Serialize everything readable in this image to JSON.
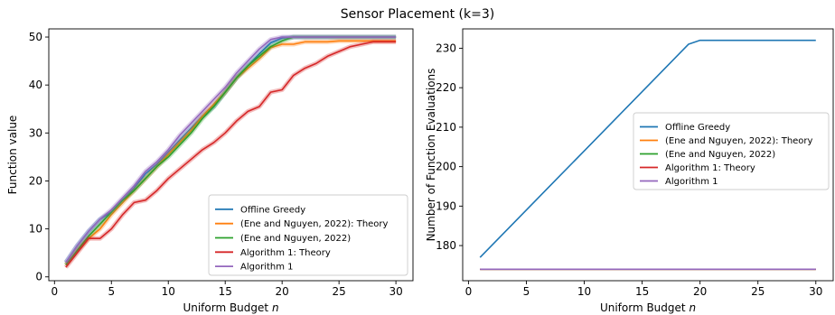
{
  "figure": {
    "suptitle": "Sensor Placement (k=3)"
  },
  "colors": {
    "offline_greedy": "#1f77b4",
    "ene_theory": "#ff7f0e",
    "ene": "#2ca02c",
    "alg1_theory": "#d62728",
    "alg1": "#9467bd"
  },
  "chart_data": [
    {
      "type": "line",
      "title": "",
      "xlabel": "Uniform Budget n",
      "ylabel": "Function value",
      "xlim": [
        -0.5,
        31.5
      ],
      "ylim": [
        -0.8,
        51.7
      ],
      "xticks": [
        0,
        5,
        10,
        15,
        20,
        25,
        30
      ],
      "yticks": [
        0,
        10,
        20,
        30,
        40,
        50
      ],
      "grid": false,
      "legend_position": "lower-right",
      "x": [
        1,
        2,
        3,
        4,
        5,
        6,
        7,
        8,
        9,
        10,
        11,
        12,
        13,
        14,
        15,
        16,
        17,
        18,
        19,
        20,
        21,
        22,
        23,
        24,
        25,
        26,
        27,
        28,
        29,
        30
      ],
      "series": [
        {
          "name": "Offline Greedy",
          "color_key": "offline_greedy",
          "values": [
            3,
            6.5,
            9.5,
            12,
            13.5,
            16,
            18.5,
            21.5,
            23.5,
            26,
            28.5,
            31,
            33.5,
            35.5,
            38.5,
            41.5,
            44,
            46.5,
            48.8,
            49.8,
            50,
            50,
            50,
            50,
            50,
            50,
            50,
            50,
            50,
            50
          ]
        },
        {
          "name": "(Ene and Nguyen, 2022): Theory",
          "color_key": "ene_theory",
          "values": [
            2.5,
            5.5,
            8,
            10,
            13,
            15.5,
            18,
            20.5,
            23,
            25.5,
            28,
            30.5,
            33.5,
            36,
            38.5,
            41.5,
            43.5,
            45.5,
            47.8,
            48.5,
            48.5,
            49,
            49,
            49,
            49.2,
            49.2,
            49.2,
            49.2,
            49.2,
            49.2
          ]
        },
        {
          "name": "(Ene and Nguyen, 2022)",
          "color_key": "ene",
          "values": [
            2.5,
            5.5,
            8.5,
            11,
            13.5,
            16,
            18,
            20.5,
            23,
            25,
            27.5,
            30,
            33,
            35.5,
            38.5,
            41.5,
            44,
            46,
            48,
            49.2,
            50,
            50,
            50,
            50,
            50,
            50,
            50,
            50,
            50,
            50
          ]
        },
        {
          "name": "Algorithm 1: Theory",
          "color_key": "alg1_theory",
          "values": [
            2,
            5,
            8,
            8,
            10,
            13,
            15.5,
            16,
            18,
            20.5,
            22.5,
            24.5,
            26.5,
            28,
            30,
            32.5,
            34.5,
            35.5,
            38.5,
            39,
            42,
            43.5,
            44.5,
            46,
            47,
            48,
            48.5,
            49,
            49,
            49
          ]
        },
        {
          "name": "Algorithm 1",
          "color_key": "alg1",
          "values": [
            3,
            6.5,
            9.5,
            12,
            14,
            16.5,
            19,
            22,
            24,
            26.5,
            29.5,
            32,
            34.5,
            37,
            39.5,
            42.5,
            45,
            47.5,
            49.5,
            50,
            50,
            50,
            50,
            50,
            50,
            50,
            50,
            50,
            50,
            50
          ]
        }
      ]
    },
    {
      "type": "line",
      "title": "",
      "xlabel": "Uniform Budget n",
      "ylabel": "Number of Function Evaluations",
      "xlim": [
        -0.5,
        31.5
      ],
      "ylim": [
        171.1,
        234.9
      ],
      "xticks": [
        0,
        5,
        10,
        15,
        20,
        25,
        30
      ],
      "yticks": [
        180,
        190,
        200,
        210,
        220,
        230
      ],
      "grid": false,
      "legend_position": "center-right",
      "x": [
        1,
        2,
        3,
        4,
        5,
        6,
        7,
        8,
        9,
        10,
        11,
        12,
        13,
        14,
        15,
        16,
        17,
        18,
        19,
        20,
        21,
        22,
        23,
        24,
        25,
        26,
        27,
        28,
        29,
        30
      ],
      "series": [
        {
          "name": "Offline Greedy",
          "color_key": "offline_greedy",
          "values": [
            177,
            180,
            183,
            186,
            189,
            192,
            195,
            198,
            201,
            204,
            207,
            210,
            213,
            216,
            219,
            222,
            225,
            228,
            231,
            232,
            232,
            232,
            232,
            232,
            232,
            232,
            232,
            232,
            232,
            232
          ]
        },
        {
          "name": "(Ene and Nguyen, 2022): Theory",
          "color_key": "ene_theory",
          "values": [
            174,
            174,
            174,
            174,
            174,
            174,
            174,
            174,
            174,
            174,
            174,
            174,
            174,
            174,
            174,
            174,
            174,
            174,
            174,
            174,
            174,
            174,
            174,
            174,
            174,
            174,
            174,
            174,
            174,
            174
          ]
        },
        {
          "name": "(Ene and Nguyen, 2022)",
          "color_key": "ene",
          "values": [
            174,
            174,
            174,
            174,
            174,
            174,
            174,
            174,
            174,
            174,
            174,
            174,
            174,
            174,
            174,
            174,
            174,
            174,
            174,
            174,
            174,
            174,
            174,
            174,
            174,
            174,
            174,
            174,
            174,
            174
          ]
        },
        {
          "name": "Algorithm 1: Theory",
          "color_key": "alg1_theory",
          "values": [
            174,
            174,
            174,
            174,
            174,
            174,
            174,
            174,
            174,
            174,
            174,
            174,
            174,
            174,
            174,
            174,
            174,
            174,
            174,
            174,
            174,
            174,
            174,
            174,
            174,
            174,
            174,
            174,
            174,
            174
          ]
        },
        {
          "name": "Algorithm 1",
          "color_key": "alg1",
          "values": [
            174,
            174,
            174,
            174,
            174,
            174,
            174,
            174,
            174,
            174,
            174,
            174,
            174,
            174,
            174,
            174,
            174,
            174,
            174,
            174,
            174,
            174,
            174,
            174,
            174,
            174,
            174,
            174,
            174,
            174
          ]
        }
      ]
    }
  ]
}
